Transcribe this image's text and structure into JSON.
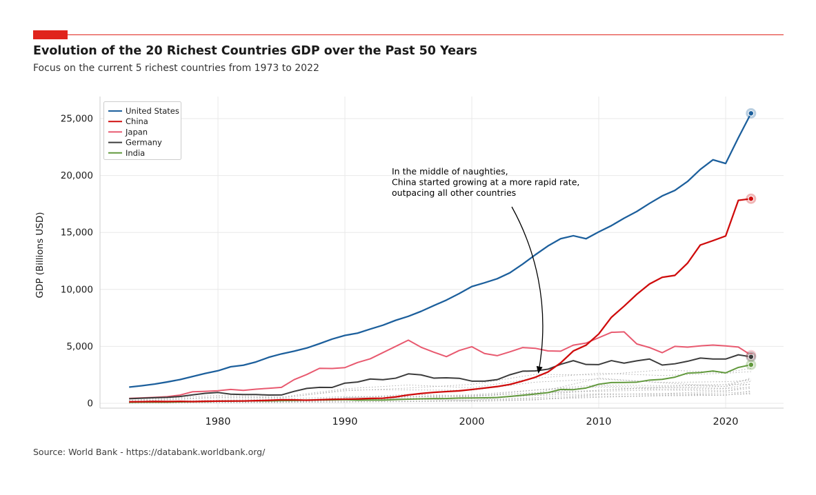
{
  "header": {
    "title": "Evolution of the 20 Richest Countries GDP over the Past 50 Years",
    "subtitle": "Focus on the current 5 richest countries from 1973 to 2022",
    "accent_color": "#e0241c"
  },
  "footer": {
    "source": "Source: World Bank - https://databank.worldbank.org/"
  },
  "chart_data": {
    "type": "line",
    "title": "Evolution of the 20 Richest Countries GDP over the Past 50 Years",
    "subtitle": "Focus on the current 5 richest countries from 1973 to 2022",
    "xlabel": "",
    "ylabel": "GDP (Billions USD)",
    "grid": true,
    "legend_position": "upper left",
    "xlim": [
      1970.8,
      2024.6
    ],
    "ylim": [
      0,
      25000
    ],
    "x_ticks": [
      1980,
      1990,
      2000,
      2010,
      2020
    ],
    "x_tick_labels": [
      "1980",
      "1990",
      "2000",
      "2010",
      "2020"
    ],
    "y_ticks": [
      0,
      5000,
      10000,
      15000,
      20000,
      25000
    ],
    "y_tick_labels": [
      "0",
      "5,000",
      "10,000",
      "15,000",
      "20,000",
      "25,000"
    ],
    "x": [
      1973,
      1974,
      1975,
      1976,
      1977,
      1978,
      1979,
      1980,
      1981,
      1982,
      1983,
      1984,
      1985,
      1986,
      1987,
      1988,
      1989,
      1990,
      1991,
      1992,
      1993,
      1994,
      1995,
      1996,
      1997,
      1998,
      1999,
      2000,
      2001,
      2002,
      2003,
      2004,
      2005,
      2006,
      2007,
      2008,
      2009,
      2010,
      2011,
      2012,
      2013,
      2014,
      2015,
      2016,
      2017,
      2018,
      2019,
      2020,
      2021,
      2022
    ],
    "series": [
      {
        "name": "United States",
        "color": "#1c5f9c",
        "values": [
          1425,
          1545,
          1685,
          1873,
          2082,
          2352,
          2627,
          2857,
          3207,
          3344,
          3634,
          4038,
          4339,
          4580,
          4855,
          5236,
          5642,
          5963,
          6158,
          6520,
          6859,
          7287,
          7640,
          8073,
          8578,
          9063,
          9631,
          10251,
          10582,
          10936,
          11458,
          12214,
          13037,
          13815,
          14452,
          14713,
          14449,
          15049,
          15600,
          16254,
          16843,
          17551,
          18206,
          18695,
          19477,
          20533,
          21381,
          21060,
          23315,
          25463
        ]
      },
      {
        "name": "China",
        "color": "#cf0c0c",
        "values": [
          138,
          144,
          163,
          154,
          175,
          150,
          178,
          191,
          196,
          205,
          231,
          260,
          310,
          301,
          273,
          312,
          348,
          361,
          383,
          427,
          445,
          564,
          734,
          864,
          962,
          1029,
          1094,
          1211,
          1339,
          1471,
          1660,
          1955,
          2286,
          2752,
          3550,
          4594,
          5102,
          6087,
          7552,
          8532,
          9570,
          10476,
          11062,
          11233,
          12310,
          13895,
          14280,
          14688,
          17820,
          17963
        ]
      },
      {
        "name": "Japan",
        "color": "#e8596f",
        "values": [
          432,
          480,
          521,
          586,
          721,
          1013,
          1055,
          1105,
          1218,
          1134,
          1243,
          1318,
          1398,
          2078,
          2532,
          3071,
          3054,
          3132,
          3584,
          3908,
          4454,
          4998,
          5545,
          4923,
          4492,
          4098,
          4636,
          4968,
          4374,
          4182,
          4519,
          4893,
          4831,
          4601,
          4579,
          5106,
          5289,
          5759,
          6233,
          6272,
          5212,
          4897,
          4444,
          5004,
          4931,
          5041,
          5118,
          5040,
          4941,
          4231
        ]
      },
      {
        "name": "Germany",
        "color": "#3b3b3b",
        "values": [
          399,
          446,
          490,
          519,
          599,
          741,
          881,
          950,
          800,
          771,
          770,
          725,
          732,
          1047,
          1307,
          1402,
          1394,
          1772,
          1869,
          2132,
          2072,
          2206,
          2585,
          2498,
          2213,
          2240,
          2197,
          1948,
          1946,
          2079,
          2506,
          2819,
          2846,
          2994,
          3425,
          3745,
          3411,
          3399,
          3749,
          3527,
          3733,
          3889,
          3358,
          3469,
          3690,
          3974,
          3889,
          3887,
          4260,
          4082
        ]
      },
      {
        "name": "India",
        "color": "#61993c",
        "values": [
          85,
          99,
          98,
          102,
          121,
          137,
          152,
          186,
          193,
          201,
          218,
          212,
          233,
          248,
          280,
          297,
          296,
          321,
          270,
          288,
          279,
          327,
          360,
          393,
          416,
          421,
          459,
          468,
          485,
          515,
          608,
          709,
          820,
          940,
          1217,
          1199,
          1342,
          1676,
          1823,
          1828,
          1857,
          2039,
          2104,
          2295,
          2651,
          2703,
          2835,
          2672,
          3150,
          3385
        ]
      }
    ],
    "background_series": {
      "note": "15 unlabeled dotted lines for the remaining richest countries",
      "years": [
        1973,
        1980,
        1985,
        1990,
        1995,
        2000,
        2005,
        2010,
        2015,
        2020,
        2022
      ],
      "values": [
        [
          190,
          565,
          490,
          1090,
          1340,
          1660,
          2540,
          2490,
          2930,
          2700,
          3070
        ],
        [
          265,
          700,
          555,
          1275,
          1610,
          1365,
          2200,
          2645,
          2440,
          2640,
          2780
        ],
        [
          175,
          480,
          453,
          1180,
          1174,
          1146,
          1857,
          2136,
          1836,
          1897,
          2010
        ],
        [
          131,
          274,
          365,
          596,
          606,
          745,
          1173,
          1617,
          1556,
          1645,
          2140
        ],
        [
          79,
          235,
          222,
          462,
          786,
          655,
          892,
          2209,
          1802,
          1476,
          1920
        ],
        [
          null,
          null,
          null,
          517,
          396,
          260,
          764,
          1525,
          1363,
          1489,
          2240
        ],
        [
          28,
          65,
          101,
          283,
          566,
          576,
          935,
          1144,
          1466,
          1644,
          1674
        ],
        [
          64,
          150,
          180,
          311,
          368,
          416,
          694,
          1148,
          1352,
          1327,
          1690
        ],
        [
          62,
          232,
          182,
          521,
          612,
          598,
          1157,
          1423,
          1196,
          1277,
          1415
        ],
        [
          55,
          206,
          196,
          261,
          344,
          708,
          877,
          1058,
          1171,
          1090,
          1465
        ],
        [
          16,
          72,
          85,
          106,
          202,
          165,
          286,
          755,
          861,
          1059,
          1319
        ],
        [
          71,
          195,
          143,
          296,
          452,
          416,
          685,
          847,
          765,
          910,
          1010
        ],
        [
          15,
          164,
          104,
          117,
          143,
          190,
          329,
          528,
          654,
          703,
          1108
        ],
        [
          27,
          69,
          67,
          150,
          170,
          274,
          506,
          777,
          864,
          720,
          907
        ],
        [
          43,
          118,
          107,
          258,
          342,
          272,
          408,
          598,
          694,
          752,
          818
        ]
      ]
    },
    "annotation": {
      "lines": [
        "In the middle of naughties,",
        "China started growing at a more rapid rate,",
        "outpacing all other countries"
      ],
      "arrow_target": {
        "year": 2005.2,
        "value": 2300
      }
    },
    "end_markers_year": 2022,
    "colors": {
      "grid": "#e8e8e8",
      "spine": "#cccccc",
      "tick_label": "#1a1a1a",
      "background_line": "#adadad",
      "annotation": "#000000"
    }
  }
}
